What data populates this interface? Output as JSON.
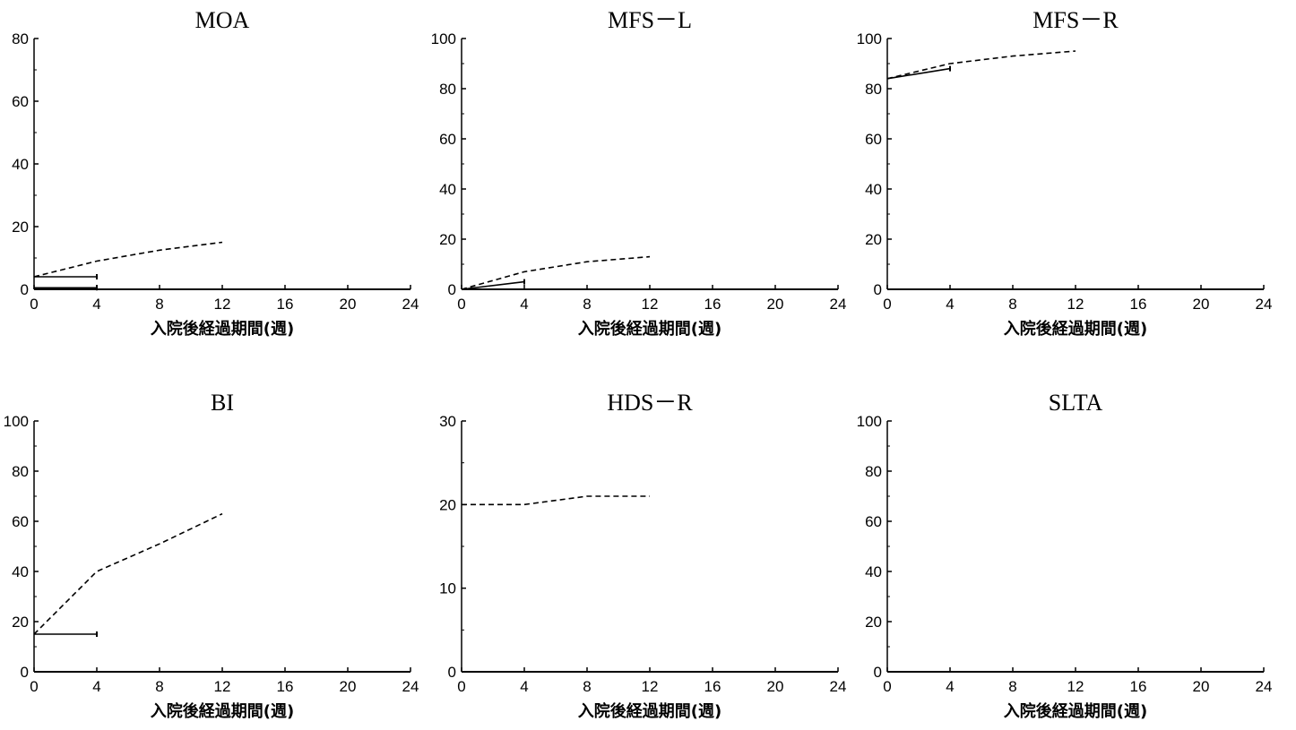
{
  "chart_data": [
    {
      "type": "line",
      "title": "MOA",
      "xlabel": "入院後経過期間(週)",
      "ylabel": "",
      "xlim": [
        0,
        24
      ],
      "ylim": [
        0,
        80
      ],
      "xticks": [
        0,
        4,
        8,
        12,
        16,
        20,
        24
      ],
      "yticks": [
        0,
        20,
        40,
        60,
        80
      ],
      "series": [
        {
          "style": "dashed",
          "x": [
            0,
            4,
            8,
            12
          ],
          "y": [
            4,
            9,
            12.5,
            15
          ]
        },
        {
          "style": "solid",
          "x": [
            0,
            4
          ],
          "y": [
            4,
            4
          ]
        },
        {
          "style": "solid",
          "x": [
            0,
            4
          ],
          "y": [
            0.5,
            0.5
          ]
        }
      ]
    },
    {
      "type": "line",
      "title": "MFS－L",
      "xlabel": "入院後経過期間(週)",
      "ylabel": "",
      "xlim": [
        0,
        24
      ],
      "ylim": [
        0,
        100
      ],
      "xticks": [
        0,
        4,
        8,
        12,
        16,
        20,
        24
      ],
      "yticks": [
        0,
        20,
        40,
        60,
        80,
        100
      ],
      "series": [
        {
          "style": "dashed",
          "x": [
            0,
            4,
            8,
            12
          ],
          "y": [
            0,
            7,
            11,
            13
          ]
        },
        {
          "style": "solid",
          "x": [
            0,
            4
          ],
          "y": [
            0,
            3
          ]
        }
      ]
    },
    {
      "type": "line",
      "title": "MFS－R",
      "xlabel": "入院後経過期間(週)",
      "ylabel": "",
      "xlim": [
        0,
        24
      ],
      "ylim": [
        0,
        100
      ],
      "xticks": [
        0,
        4,
        8,
        12,
        16,
        20,
        24
      ],
      "yticks": [
        0,
        20,
        40,
        60,
        80,
        100
      ],
      "series": [
        {
          "style": "dashed",
          "x": [
            0,
            4,
            8,
            12
          ],
          "y": [
            84,
            90,
            93,
            95
          ]
        },
        {
          "style": "solid",
          "x": [
            0,
            4
          ],
          "y": [
            84,
            88
          ]
        }
      ]
    },
    {
      "type": "line",
      "title": "BI",
      "xlabel": "入院後経過期間(週)",
      "ylabel": "",
      "xlim": [
        0,
        24
      ],
      "ylim": [
        0,
        100
      ],
      "xticks": [
        0,
        4,
        8,
        12,
        16,
        20,
        24
      ],
      "yticks": [
        0,
        20,
        40,
        60,
        80,
        100
      ],
      "series": [
        {
          "style": "dashed",
          "x": [
            0,
            4,
            8,
            12
          ],
          "y": [
            15,
            40,
            51,
            63
          ]
        },
        {
          "style": "solid",
          "x": [
            0,
            4
          ],
          "y": [
            15,
            15
          ]
        }
      ]
    },
    {
      "type": "line",
      "title": "HDS－R",
      "xlabel": "入院後経過期間(週)",
      "ylabel": "",
      "xlim": [
        0,
        24
      ],
      "ylim": [
        0,
        30
      ],
      "xticks": [
        0,
        4,
        8,
        12,
        16,
        20,
        24
      ],
      "yticks": [
        0,
        10,
        20,
        30
      ],
      "series": [
        {
          "style": "dashed",
          "x": [
            0,
            4,
            8,
            12
          ],
          "y": [
            20,
            20,
            21,
            21
          ]
        }
      ]
    },
    {
      "type": "line",
      "title": "SLTA",
      "xlabel": "入院後経過期間(週)",
      "ylabel": "",
      "xlim": [
        0,
        24
      ],
      "ylim": [
        0,
        100
      ],
      "xticks": [
        0,
        4,
        8,
        12,
        16,
        20,
        24
      ],
      "yticks": [
        0,
        20,
        40,
        60,
        80,
        100
      ],
      "series": []
    }
  ]
}
